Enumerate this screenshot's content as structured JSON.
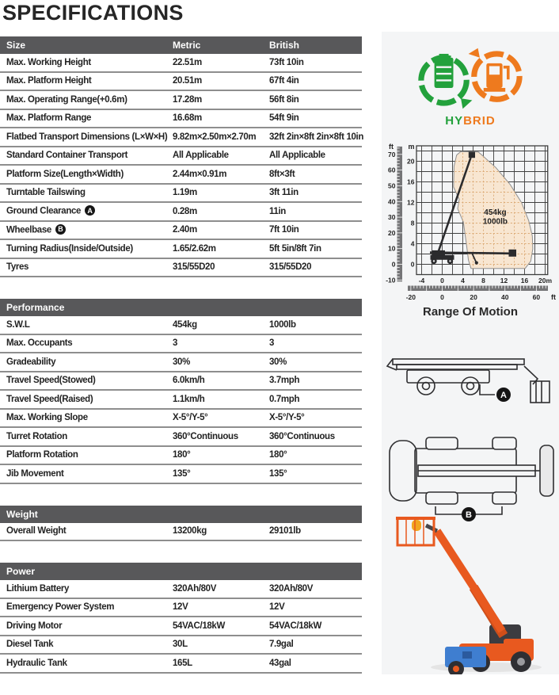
{
  "title": "SPECIFICATIONS",
  "colors": {
    "header_bar": "#58585a",
    "row_divider": "#8e8e8e",
    "panel_bg": "#f4f5f6",
    "hybrid_green": "#23a13c",
    "hybrid_orange": "#ee7a1e",
    "machine_orange": "#e8591f"
  },
  "tables": [
    {
      "section": "Size",
      "columns": [
        "Metric",
        "British"
      ],
      "rows": [
        {
          "label": "Max. Working Height",
          "metric": "22.51m",
          "british": "73ft 10in"
        },
        {
          "label": "Max. Platform Height",
          "metric": "20.51m",
          "british": "67ft 4in"
        },
        {
          "label": "Max. Operating Range(+0.6m)",
          "metric": "17.28m",
          "british": "56ft 8in"
        },
        {
          "label": "Max. Platform Range",
          "metric": "16.68m",
          "british": "54ft 9in"
        },
        {
          "label": "Flatbed Transport Dimensions (L×W×H)",
          "metric": "9.82m×2.50m×2.70m",
          "british": "32ft 2in×8ft 2in×8ft 10in"
        },
        {
          "label": "Standard Container Transport",
          "metric": "All Applicable",
          "british": "All Applicable"
        },
        {
          "label": "Platform Size(Length×Width)",
          "metric": "2.44m×0.91m",
          "british": "8ft×3ft"
        },
        {
          "label": "Turntable Tailswing",
          "metric": "1.19m",
          "british": "3ft 11in"
        },
        {
          "label": "Ground Clearance",
          "badge": "A",
          "metric": "0.28m",
          "british": "11in"
        },
        {
          "label": "Wheelbase",
          "badge": "B",
          "metric": "2.40m",
          "british": "7ft 10in"
        },
        {
          "label": "Turning Radius(Inside/Outside)",
          "metric": "1.65/2.62m",
          "british": "5ft 5in/8ft 7in"
        },
        {
          "label": "Tyres",
          "metric": "315/55D20",
          "british": "315/55D20"
        }
      ]
    },
    {
      "section": "Performance",
      "rows": [
        {
          "label": "S.W.L",
          "metric": "454kg",
          "british": "1000lb"
        },
        {
          "label": "Max. Occupants",
          "metric": "3",
          "british": "3"
        },
        {
          "label": "Gradeability",
          "metric": "30%",
          "british": "30%"
        },
        {
          "label": "Travel Speed(Stowed)",
          "metric": "6.0km/h",
          "british": "3.7mph"
        },
        {
          "label": "Travel Speed(Raised)",
          "metric": "1.1km/h",
          "british": "0.7mph"
        },
        {
          "label": "Max. Working Slope",
          "metric": "X-5°/Y-5°",
          "british": "X-5°/Y-5°"
        },
        {
          "label": "Turret Rotation",
          "metric": "360°Continuous",
          "british": "360°Continuous"
        },
        {
          "label": "Platform Rotation",
          "metric": "180°",
          "british": "180°"
        },
        {
          "label": "Jib Movement",
          "metric": "135°",
          "british": "135°"
        }
      ]
    },
    {
      "section": "Weight",
      "rows": [
        {
          "label": "Overall Weight",
          "metric": "13200kg",
          "british": "29101lb"
        }
      ]
    },
    {
      "section": "Power",
      "rows": [
        {
          "label": "Lithium Battery",
          "metric": "320Ah/80V",
          "british": "320Ah/80V"
        },
        {
          "label": "Emergency Power System",
          "metric": "12V",
          "british": "12V"
        },
        {
          "label": "Driving Motor",
          "metric": "54VAC/18kW",
          "british": "54VAC/18kW"
        },
        {
          "label": "Diesel Tank",
          "metric": "30L",
          "british": "7.9gal"
        },
        {
          "label": "Hydraulic Tank",
          "metric": "165L",
          "british": "43gal"
        }
      ]
    }
  ],
  "hybrid_badge": {
    "text_green": "HY",
    "text_orange": "BRID"
  },
  "diagrams": {
    "side_label": "A",
    "top_label": "B"
  },
  "chart_data": {
    "type": "area",
    "title": "Range Of Motion",
    "capacity_label": [
      "454kg",
      "1000lb"
    ],
    "capacity_pos_m": [
      10.3,
      9.6
    ],
    "grid_step_m": 2,
    "x_axis": {
      "range_m": [
        -5,
        20.5
      ],
      "m_ticks": [
        -4,
        0,
        4,
        8,
        12,
        16,
        20
      ],
      "m_tick_labels": [
        "-4",
        "0",
        "4",
        "8",
        "12",
        "16",
        "20m"
      ],
      "m_unit": "m",
      "ft_ticks": [
        -20,
        0,
        20,
        40,
        60
      ],
      "ft_unit": "ft"
    },
    "y_axis": {
      "range_m": [
        -2,
        23
      ],
      "m_ticks": [
        20,
        16,
        12,
        8,
        4,
        0
      ],
      "m_tick_labels": [
        "20",
        "16",
        "12",
        "8",
        "4",
        "0"
      ],
      "m_unit": "m",
      "ft_ticks": [
        70,
        60,
        50,
        40,
        30,
        20,
        10,
        0,
        -10
      ],
      "ft_unit": "ft"
    },
    "envelope_fill": "#f8e6d1",
    "envelope_m": [
      [
        5.6,
        -0.8
      ],
      [
        16.1,
        -0.8
      ],
      [
        17.2,
        0.6
      ],
      [
        17.6,
        3.0
      ],
      [
        17.5,
        5.5
      ],
      [
        16.8,
        8.5
      ],
      [
        15.4,
        12.0
      ],
      [
        13.2,
        15.5
      ],
      [
        10.4,
        18.8
      ],
      [
        7.6,
        21.3
      ],
      [
        7.0,
        21.8
      ],
      [
        3.6,
        21.9
      ],
      [
        2.8,
        21.2
      ],
      [
        2.3,
        19.0
      ],
      [
        2.2,
        15.0
      ],
      [
        3.3,
        12.6
      ],
      [
        3.0,
        10.8
      ],
      [
        4.1,
        8.2
      ],
      [
        4.7,
        4.0
      ],
      [
        5.1,
        0.8
      ]
    ]
  }
}
